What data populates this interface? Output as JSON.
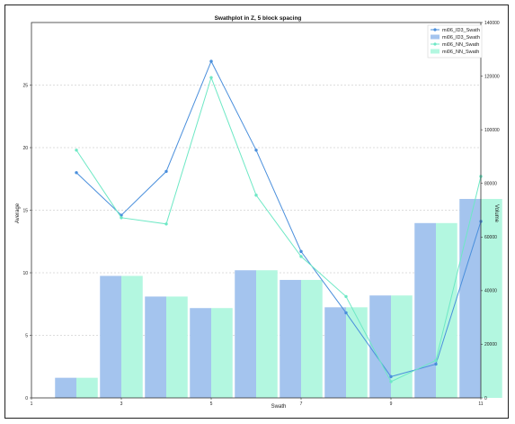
{
  "chart_data": {
    "type": "bar+line",
    "title": "Swathplot in Z, 5 block spacing",
    "xlabel": "Swath",
    "ylabel_left": "Average",
    "ylabel_right": "Volume",
    "xlim": [
      1,
      11
    ],
    "xticks": [
      1,
      3,
      5,
      7,
      9,
      11
    ],
    "ylim_left": [
      0,
      30
    ],
    "yticks_left": [
      0,
      5,
      10,
      15,
      20,
      25
    ],
    "ylim_right": [
      0,
      140000
    ],
    "yticks_right": [
      0,
      20000,
      40000,
      60000,
      80000,
      100000,
      120000,
      140000
    ],
    "grid": true,
    "legend_position": "top-right",
    "x": [
      2,
      3,
      4,
      5,
      6,
      7,
      8,
      9,
      10,
      11
    ],
    "series": [
      {
        "name": "mi06_ID3_Swath",
        "kind": "line",
        "axis": "left",
        "color": "#4a8fdc",
        "values": [
          18.0,
          14.6,
          18.1,
          26.9,
          19.8,
          11.7,
          6.8,
          1.7,
          2.7,
          14.1
        ]
      },
      {
        "name": "mi06_ID3_Swath",
        "kind": "bar",
        "axis": "right",
        "color": "#a4c4ee",
        "values": [
          7500,
          45500,
          37800,
          33500,
          47600,
          44000,
          33800,
          38200,
          65200,
          74200
        ]
      },
      {
        "name": "mi06_NN_Swath",
        "kind": "line",
        "axis": "left",
        "color": "#6ee8c5",
        "values": [
          19.8,
          14.4,
          13.9,
          25.6,
          16.2,
          11.3,
          8.1,
          1.3,
          3.0,
          17.7
        ]
      },
      {
        "name": "mi06_NN_Swath",
        "kind": "bar",
        "axis": "right",
        "color": "#b3f7e0",
        "values": [
          7500,
          45500,
          37800,
          33500,
          47600,
          44000,
          33800,
          38200,
          65200,
          74200
        ]
      }
    ]
  }
}
